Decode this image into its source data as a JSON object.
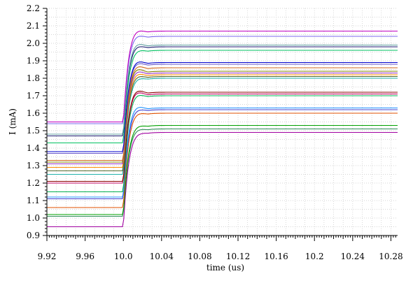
{
  "chart_data": {
    "type": "line",
    "title": "",
    "xlabel": "time (us)",
    "ylabel": "I (mA)",
    "xlim": [
      9.92,
      10.287
    ],
    "ylim": [
      0.9,
      2.2
    ],
    "x_ticks": [
      9.92,
      9.96,
      10.0,
      10.04,
      10.08,
      10.12,
      10.16,
      10.2,
      10.24,
      10.28
    ],
    "x_tick_labels": [
      "9.92",
      "9.96",
      "10.0",
      "10.04",
      "10.08",
      "10.12",
      "10.16",
      "10.2",
      "10.24",
      "10.28"
    ],
    "y_ticks": [
      0.9,
      1.0,
      1.1,
      1.2,
      1.3,
      1.4,
      1.5,
      1.6,
      1.7,
      1.8,
      1.9,
      2.0,
      2.1,
      2.2
    ],
    "y_tick_labels": [
      "0.9",
      "1.0",
      "1.1",
      "1.2",
      "1.3",
      "1.4",
      "1.5",
      "1.6",
      "1.7",
      "1.8",
      "1.9",
      "2.0",
      "2.1",
      "2.2"
    ],
    "grid": true,
    "step_time": 10.0,
    "x_end": 10.287,
    "series": [
      {
        "start": 0.95,
        "final": 1.49,
        "peak": 1.53,
        "color": "#a000a0"
      },
      {
        "start": 1.01,
        "final": 1.51,
        "peak": 1.56,
        "color": "#2e8b57"
      },
      {
        "start": 1.02,
        "final": 1.53,
        "peak": 1.58,
        "color": "#00a000"
      },
      {
        "start": 1.06,
        "final": 1.6,
        "peak": 1.66,
        "color": "#e05000"
      },
      {
        "start": 1.11,
        "final": 1.62,
        "peak": 1.68,
        "color": "#4040d0"
      },
      {
        "start": 1.12,
        "final": 1.63,
        "peak": 1.71,
        "color": "#1e90ff"
      },
      {
        "start": 1.15,
        "final": 1.7,
        "peak": 1.78,
        "color": "#00b050"
      },
      {
        "start": 1.2,
        "final": 1.71,
        "peak": 1.8,
        "color": "#c00060"
      },
      {
        "start": 1.21,
        "final": 1.72,
        "peak": 1.81,
        "color": "#8b0000"
      },
      {
        "start": 1.25,
        "final": 1.8,
        "peak": 1.86,
        "color": "#20b2aa"
      },
      {
        "start": 1.27,
        "final": 1.81,
        "peak": 1.88,
        "color": "#556b2f"
      },
      {
        "start": 1.29,
        "final": 1.82,
        "peak": 1.9,
        "color": "#ff8c00"
      },
      {
        "start": 1.31,
        "final": 1.83,
        "peak": 1.92,
        "color": "#9932cc"
      },
      {
        "start": 1.32,
        "final": 1.84,
        "peak": 1.94,
        "color": "#808000"
      },
      {
        "start": 1.33,
        "final": 1.86,
        "peak": 1.95,
        "color": "#d2691e"
      },
      {
        "start": 1.37,
        "final": 1.88,
        "peak": 1.96,
        "color": "#6a5acd"
      },
      {
        "start": 1.38,
        "final": 1.89,
        "peak": 1.97,
        "color": "#0000cd"
      },
      {
        "start": 1.43,
        "final": 1.96,
        "peak": 2.02,
        "color": "#00c060"
      },
      {
        "start": 1.47,
        "final": 1.98,
        "peak": 2.05,
        "color": "#191970"
      },
      {
        "start": 1.48,
        "final": 1.99,
        "peak": 2.07,
        "color": "#5f9ea0"
      },
      {
        "start": 1.54,
        "final": 2.04,
        "peak": 2.11,
        "color": "#7b68ee"
      },
      {
        "start": 1.55,
        "final": 2.07,
        "peak": 2.14,
        "color": "#c000c0"
      }
    ]
  }
}
